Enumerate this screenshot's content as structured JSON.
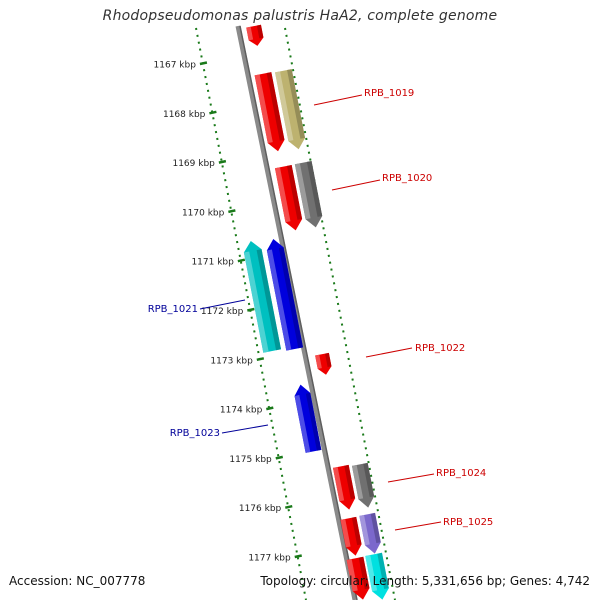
{
  "title": "Rhodopseudomonas palustris HaA2, complete genome",
  "footer": {
    "accession": "Accession: NC_007778",
    "topology": "Topology: circular; Length: 5,331,656 bp; Genes: 4,742"
  },
  "colors": {
    "backbone": "#8a8a8a",
    "ticks": "#1a7a1a",
    "forward_label": "#cc0000",
    "reverse_label": "#000099"
  },
  "ticks": [
    "1167 kbp",
    "1168 kbp",
    "1169 kbp",
    "1170 kbp",
    "1171 kbp",
    "1172 kbp",
    "1173 kbp",
    "1174 kbp",
    "1175 kbp",
    "1176 kbp",
    "1177 kbp"
  ],
  "gene_labels": [
    {
      "name": "RPB_1019",
      "strand": "forward"
    },
    {
      "name": "RPB_1020",
      "strand": "forward"
    },
    {
      "name": "RPB_1021",
      "strand": "reverse"
    },
    {
      "name": "RPB_1022",
      "strand": "forward"
    },
    {
      "name": "RPB_1023",
      "strand": "reverse"
    },
    {
      "name": "RPB_1024",
      "strand": "forward"
    },
    {
      "name": "RPB_1025",
      "strand": "forward"
    }
  ],
  "features": [
    {
      "kind": "cds",
      "color": "#ee0000",
      "strand": "forward"
    },
    {
      "kind": "cds",
      "color": "#ee0000",
      "strand": "forward"
    },
    {
      "kind": "gene",
      "color": "#bdb26f",
      "strand": "forward"
    },
    {
      "kind": "cds",
      "color": "#ee0000",
      "strand": "forward"
    },
    {
      "kind": "gene",
      "color": "#707070",
      "strand": "forward"
    },
    {
      "kind": "cds",
      "color": "#00c0c0",
      "strand": "reverse"
    },
    {
      "kind": "cds",
      "color": "#0000dd",
      "strand": "reverse"
    },
    {
      "kind": "cds",
      "color": "#ee0000",
      "strand": "forward"
    },
    {
      "kind": "cds",
      "color": "#0000dd",
      "strand": "reverse"
    },
    {
      "kind": "cds",
      "color": "#ee0000",
      "strand": "forward"
    },
    {
      "kind": "gene",
      "color": "#707070",
      "strand": "forward"
    },
    {
      "kind": "cds",
      "color": "#ee0000",
      "strand": "forward"
    },
    {
      "kind": "gene",
      "color": "#7b68cc",
      "strand": "forward"
    },
    {
      "kind": "cds",
      "color": "#ee0000",
      "strand": "forward"
    },
    {
      "kind": "gene",
      "color": "#00e0e0",
      "strand": "forward"
    }
  ]
}
